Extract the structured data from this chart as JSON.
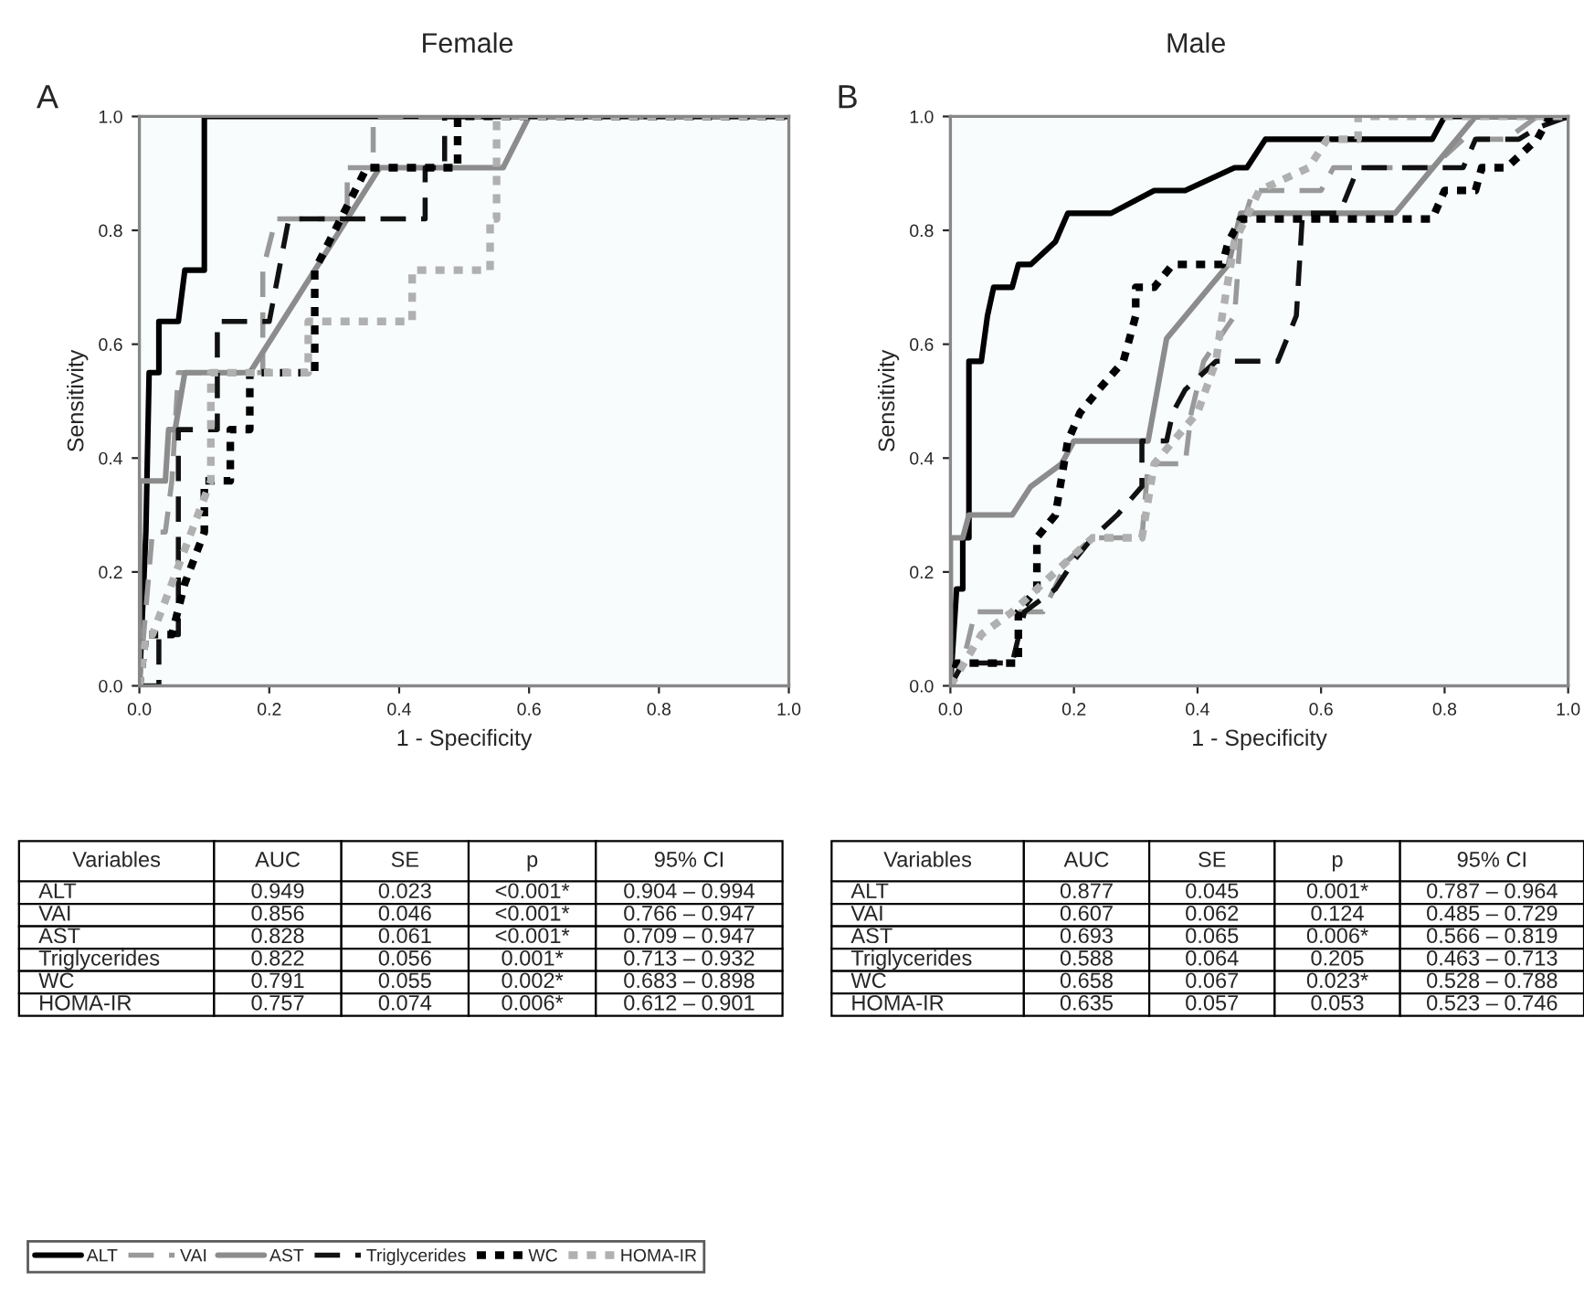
{
  "chart_data": [
    {
      "type": "line",
      "title": "Female",
      "annotations": [
        "A"
      ],
      "xlabel": "1 - Specificity",
      "ylabel": "Sensitivity",
      "xlim": [
        0,
        1
      ],
      "ylim": [
        0,
        1
      ],
      "xticks": [
        {
          "value": 0,
          "label": "0.0"
        },
        {
          "value": 0.2,
          "label": "0.2"
        },
        {
          "value": 0.4,
          "label": "0.4"
        },
        {
          "value": 0.6,
          "label": "0.6"
        },
        {
          "value": 0.8,
          "label": "0.8"
        },
        {
          "value": 1,
          "label": "1.0"
        }
      ],
      "yticks": [
        {
          "value": 0,
          "label": "0.0"
        },
        {
          "value": 0.2,
          "label": "0.2"
        },
        {
          "value": 0.4,
          "label": "0.4"
        },
        {
          "value": 0.6,
          "label": "0.6"
        },
        {
          "value": 0.8,
          "label": "0.8"
        },
        {
          "value": 1,
          "label": "1.0"
        }
      ],
      "grid": false,
      "legend": "bottom",
      "series": [
        {
          "name": "ALT",
          "color": "#000000",
          "line_style": "solid",
          "x": [
            0,
            0.01,
            0.015,
            0.03,
            0.03,
            0.06,
            0.07,
            0.1,
            0.1,
            1
          ],
          "values": [
            0,
            0.27,
            0.55,
            0.55,
            0.64,
            0.64,
            0.73,
            0.73,
            1.0,
            1.0
          ]
        },
        {
          "name": "VAI",
          "color": "#999999",
          "line_style": "dashed",
          "x": [
            0,
            0.02,
            0.04,
            0.05,
            0.06,
            0.19,
            0.19,
            0.21,
            0.32,
            0.32,
            0.36,
            0.36,
            1
          ],
          "values": [
            0,
            0.27,
            0.27,
            0.36,
            0.55,
            0.55,
            0.73,
            0.82,
            0.82,
            0.91,
            0.91,
            1.0,
            1.0
          ]
        },
        {
          "name": "AST",
          "color": "#8c8c8c",
          "line_style": "solid",
          "x": [
            0,
            0,
            0.04,
            0.045,
            0.055,
            0.07,
            0.17,
            0.37,
            0.56,
            0.6,
            1
          ],
          "values": [
            0,
            0.36,
            0.36,
            0.45,
            0.45,
            0.55,
            0.55,
            0.91,
            0.91,
            1.0,
            1.0
          ]
        },
        {
          "name": "Triglycerides",
          "color": "#111111",
          "line_style": "dashed",
          "x": [
            0,
            0.03,
            0.03,
            0.06,
            0.06,
            0.12,
            0.12,
            0.2,
            0.23,
            0.44,
            0.44,
            0.47,
            0.47,
            1
          ],
          "values": [
            0,
            0,
            0.09,
            0.09,
            0.45,
            0.45,
            0.64,
            0.64,
            0.82,
            0.82,
            0.91,
            0.91,
            1.0,
            1.0
          ]
        },
        {
          "name": "WC",
          "color": "#000000",
          "line_style": "dotted",
          "x": [
            0,
            0.01,
            0.05,
            0.07,
            0.1,
            0.1,
            0.14,
            0.14,
            0.17,
            0.17,
            0.27,
            0.27,
            0.35,
            0.49,
            0.49,
            1
          ],
          "values": [
            0,
            0.09,
            0.09,
            0.18,
            0.27,
            0.36,
            0.36,
            0.45,
            0.45,
            0.55,
            0.55,
            0.73,
            0.91,
            0.91,
            1.0,
            1.0
          ]
        },
        {
          "name": "HOMA-IR",
          "color": "#b0b0b0",
          "line_style": "dotted",
          "x": [
            0,
            0.01,
            0.02,
            0.11,
            0.11,
            0.26,
            0.26,
            0.42,
            0.42,
            0.54,
            0.54,
            0.55,
            0.55,
            1
          ],
          "values": [
            0,
            0.09,
            0.09,
            0.36,
            0.55,
            0.55,
            0.64,
            0.64,
            0.73,
            0.73,
            0.82,
            0.82,
            1.0,
            1.0
          ]
        }
      ]
    },
    {
      "type": "line",
      "title": "Male",
      "annotations": [
        "B"
      ],
      "xlabel": "1 - Specificity",
      "ylabel": "Sensitivity",
      "xlim": [
        0,
        1
      ],
      "ylim": [
        0,
        1
      ],
      "xticks": [
        {
          "value": 0,
          "label": "0.0"
        },
        {
          "value": 0.2,
          "label": "0.2"
        },
        {
          "value": 0.4,
          "label": "0.4"
        },
        {
          "value": 0.6,
          "label": "0.6"
        },
        {
          "value": 0.8,
          "label": "0.8"
        },
        {
          "value": 1,
          "label": "1.0"
        }
      ],
      "yticks": [
        {
          "value": 0,
          "label": "0.0"
        },
        {
          "value": 0.2,
          "label": "0.2"
        },
        {
          "value": 0.4,
          "label": "0.4"
        },
        {
          "value": 0.6,
          "label": "0.6"
        },
        {
          "value": 0.8,
          "label": "0.8"
        },
        {
          "value": 1,
          "label": "1.0"
        }
      ],
      "grid": false,
      "series": [
        {
          "color": "#000000",
          "line_style": "solid",
          "x": [
            0,
            0.01,
            0.02,
            0.02,
            0.03,
            0.03,
            0.05,
            0.06,
            0.07,
            0.1,
            0.11,
            0.13,
            0.17,
            0.19,
            0.26,
            0.33,
            0.38,
            0.46,
            0.48,
            0.51,
            0.78,
            0.8,
            1
          ],
          "values": [
            0,
            0.17,
            0.17,
            0.26,
            0.26,
            0.57,
            0.57,
            0.65,
            0.7,
            0.7,
            0.74,
            0.74,
            0.78,
            0.83,
            0.83,
            0.87,
            0.87,
            0.91,
            0.91,
            0.96,
            0.96,
            1.0,
            1.0
          ]
        },
        {
          "color": "#999999",
          "line_style": "dashed",
          "x": [
            0,
            0.02,
            0.04,
            0.15,
            0.19,
            0.23,
            0.31,
            0.32,
            0.38,
            0.39,
            0.41,
            0.46,
            0.47,
            0.49,
            0.6,
            0.62,
            0.78,
            0.83,
            0.9,
            0.95,
            1
          ],
          "values": [
            0,
            0.04,
            0.13,
            0.13,
            0.22,
            0.26,
            0.26,
            0.39,
            0.39,
            0.48,
            0.57,
            0.65,
            0.8,
            0.87,
            0.87,
            0.91,
            0.91,
            0.96,
            0.96,
            1.0,
            1.0
          ]
        },
        {
          "color": "#8c8c8c",
          "line_style": "solid",
          "x": [
            0,
            0,
            0.02,
            0.03,
            0.1,
            0.13,
            0.18,
            0.2,
            0.32,
            0.35,
            0.45,
            0.47,
            0.72,
            0.85,
            1
          ],
          "values": [
            0,
            0.26,
            0.26,
            0.3,
            0.3,
            0.35,
            0.39,
            0.43,
            0.43,
            0.61,
            0.74,
            0.83,
            0.83,
            1.0,
            1.0
          ]
        },
        {
          "color": "#111111",
          "line_style": "dashed",
          "x": [
            0,
            0.02,
            0.1,
            0.12,
            0.17,
            0.2,
            0.23,
            0.27,
            0.31,
            0.31,
            0.35,
            0.36,
            0.38,
            0.43,
            0.53,
            0.56,
            0.57,
            0.63,
            0.66,
            0.83,
            0.85,
            0.92,
            0.95,
            1
          ],
          "values": [
            0,
            0.04,
            0.04,
            0.13,
            0.17,
            0.22,
            0.26,
            0.3,
            0.35,
            0.43,
            0.43,
            0.48,
            0.52,
            0.57,
            0.57,
            0.65,
            0.83,
            0.83,
            0.91,
            0.91,
            0.96,
            0.96,
            0.98,
            1.0
          ]
        },
        {
          "color": "#000000",
          "line_style": "dotted",
          "x": [
            0,
            0.01,
            0.11,
            0.11,
            0.14,
            0.14,
            0.17,
            0.19,
            0.21,
            0.24,
            0.28,
            0.3,
            0.3,
            0.33,
            0.36,
            0.44,
            0.45,
            0.47,
            0.78,
            0.8,
            0.85,
            0.86,
            0.9,
            0.95,
            0.97,
            1
          ],
          "values": [
            0,
            0.04,
            0.04,
            0.13,
            0.17,
            0.26,
            0.3,
            0.43,
            0.48,
            0.52,
            0.57,
            0.65,
            0.7,
            0.7,
            0.74,
            0.74,
            0.78,
            0.82,
            0.82,
            0.87,
            0.87,
            0.91,
            0.91,
            0.96,
            1.0,
            1.0
          ]
        },
        {
          "color": "#b0b0b0",
          "line_style": "dotted",
          "x": [
            0,
            0.05,
            0.1,
            0.19,
            0.23,
            0.31,
            0.33,
            0.4,
            0.43,
            0.44,
            0.46,
            0.5,
            0.58,
            0.61,
            0.66,
            0.66,
            1
          ],
          "values": [
            0,
            0.09,
            0.13,
            0.22,
            0.26,
            0.26,
            0.39,
            0.48,
            0.57,
            0.65,
            0.78,
            0.87,
            0.91,
            0.96,
            0.96,
            1.0,
            1.0
          ]
        }
      ]
    },
    {
      "type": "other",
      "categories": [
        "Variables",
        "AUC",
        "SE",
        "p",
        "95% CI"
      ],
      "cell_labels": [
        [
          "ALT",
          "0.949",
          "0.023",
          "<0.001*",
          "0.904 – 0.994"
        ],
        [
          "VAI",
          "0.856",
          "0.046",
          "<0.001*",
          "0.766 – 0.947"
        ],
        [
          "AST",
          "0.828",
          "0.061",
          "<0.001*",
          "0.709 – 0.947"
        ],
        [
          "Triglycerides",
          "0.822",
          "0.056",
          "0.001*",
          "0.713 – 0.932"
        ],
        [
          "WC",
          "0.791",
          "0.055",
          "0.002*",
          "0.683 – 0.898"
        ],
        [
          "HOMA-IR",
          "0.757",
          "0.074",
          "0.006*",
          "0.612 – 0.901"
        ]
      ]
    },
    {
      "type": "other",
      "categories": [
        "Variables",
        "AUC",
        "SE",
        "p",
        "95% CI"
      ],
      "cell_labels": [
        [
          "ALT",
          "0.877",
          "0.045",
          "0.001*",
          "0.787 – 0.964"
        ],
        [
          "VAI",
          "0.607",
          "0.062",
          "0.124",
          "0.485 – 0.729"
        ],
        [
          "AST",
          "0.693",
          "0.065",
          "0.006*",
          "0.566 – 0.819"
        ],
        [
          "Triglycerides",
          "0.588",
          "0.064",
          "0.205",
          "0.463 – 0.713"
        ],
        [
          "WC",
          "0.658",
          "0.067",
          "0.023*",
          "0.528 – 0.788"
        ],
        [
          "HOMA-IR",
          "0.635",
          "0.057",
          "0.053",
          "0.523 – 0.746"
        ]
      ]
    }
  ]
}
